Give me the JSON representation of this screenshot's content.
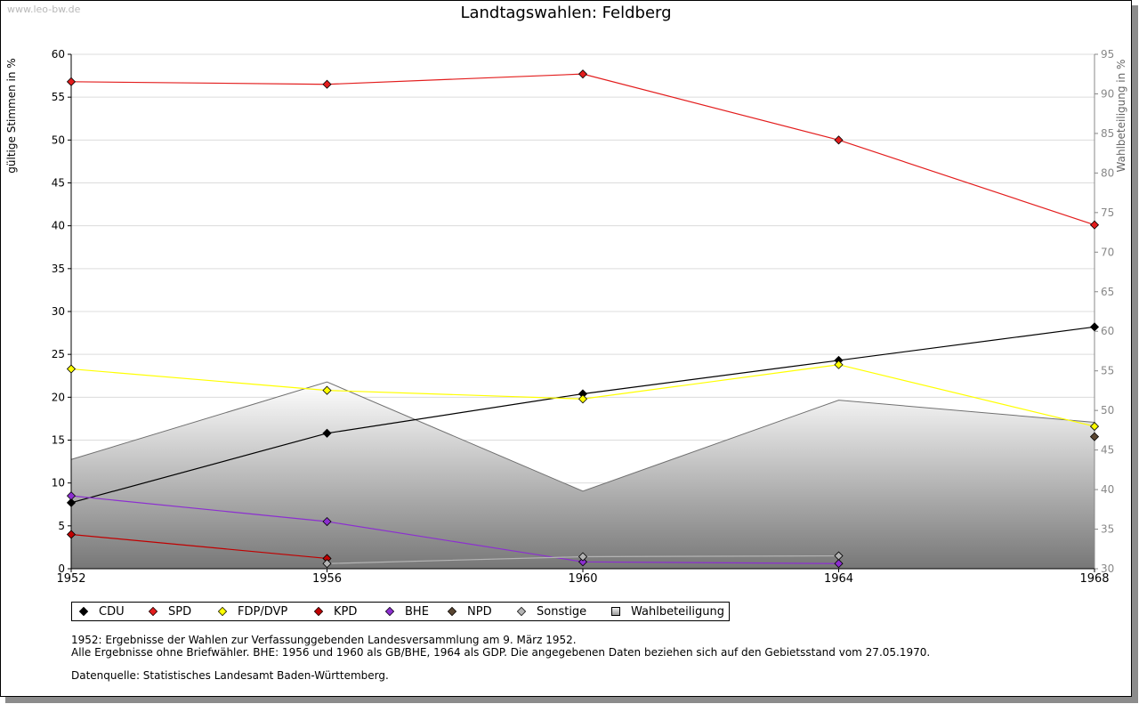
{
  "watermark": "www.leo-bw.de",
  "chart_data": {
    "type": "line",
    "title": "Landtagswahlen: Feldberg",
    "ylabel": "gültige Stimmen in %",
    "y2label": "Wahlbeteiligung in %",
    "x": [
      1952,
      1956,
      1960,
      1964,
      1968
    ],
    "x_ticks": [
      "1952",
      "1956",
      "1960",
      "1964",
      "1968"
    ],
    "ylim": [
      0,
      60
    ],
    "y_ticks": [
      "0",
      "5",
      "10",
      "15",
      "20",
      "25",
      "30",
      "35",
      "40",
      "45",
      "50",
      "55",
      "60"
    ],
    "y2lim": [
      30,
      95
    ],
    "y2_ticks": [
      "30",
      "35",
      "40",
      "45",
      "50",
      "55",
      "60",
      "65",
      "70",
      "75",
      "80",
      "85",
      "90",
      "95"
    ],
    "grid": "horizontal",
    "legend_position": "bottom",
    "area": {
      "name": "Wahlbeteiligung",
      "axis": "right",
      "values": [
        43.8,
        53.6,
        39.8,
        51.3,
        48.5
      ]
    },
    "series": [
      {
        "name": "CDU",
        "color": "#000000",
        "values": [
          7.7,
          15.8,
          20.4,
          24.3,
          28.2
        ]
      },
      {
        "name": "SPD",
        "color": "#e31d1d",
        "values": [
          56.8,
          56.5,
          57.7,
          50.0,
          40.1
        ]
      },
      {
        "name": "FDP/DVP",
        "color": "#ffff00",
        "values": [
          23.3,
          20.8,
          19.8,
          23.8,
          16.6
        ]
      },
      {
        "name": "KPD",
        "color": "#c00000",
        "values": [
          4.0,
          1.2,
          null,
          null,
          null
        ]
      },
      {
        "name": "BHE",
        "color": "#8c2fd0",
        "values": [
          8.5,
          5.5,
          0.8,
          0.6,
          null
        ]
      },
      {
        "name": "NPD",
        "color": "#5a4632",
        "values": [
          null,
          null,
          null,
          null,
          15.4
        ]
      },
      {
        "name": "Sonstige",
        "color": "#b4b4b4",
        "values": [
          null,
          0.6,
          1.4,
          1.5,
          null
        ]
      }
    ]
  },
  "legend": {
    "items": [
      "CDU",
      "SPD",
      "FDP/DVP",
      "KPD",
      "BHE",
      "NPD",
      "Sonstige",
      "Wahlbeteiligung"
    ],
    "colors": [
      "#000000",
      "#e31d1d",
      "#ffff00",
      "#c00000",
      "#8c2fd0",
      "#5a4632",
      "#b4b4b4",
      "#c8c8c8"
    ]
  },
  "notes": {
    "line1": "1952: Ergebnisse der Wahlen zur Verfassunggebenden Landesversammlung am 9. März 1952.",
    "line2": "Alle Ergebnisse ohne Briefwähler. BHE: 1956 und 1960 als GB/BHE, 1964 als GDP. Die angegebenen Daten beziehen sich auf den Gebietsstand vom 27.05.1970.",
    "source": "Datenquelle: Statistisches Landesamt Baden-Württemberg."
  }
}
